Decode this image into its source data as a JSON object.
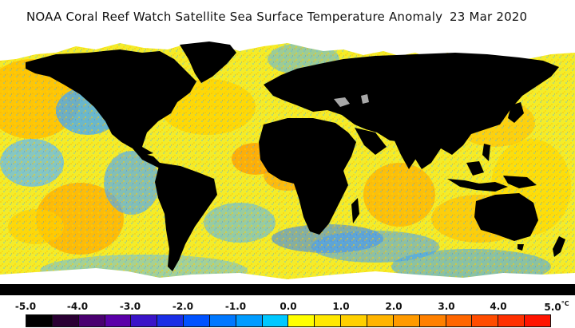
{
  "title": {
    "main": "NOAA Coral Reef Watch Satellite Sea Surface Temperature Anomaly",
    "date": "23 Mar 2020"
  },
  "map": {
    "projection": "equirectangular",
    "variable": "sea surface temperature anomaly",
    "land_color": "#000000",
    "sea_ice_color": "#ffffff",
    "lake_color": "#a8a8a8"
  },
  "colorbar": {
    "ticks": [
      "-5.0",
      "-4.0",
      "-3.0",
      "-2.0",
      "-1.0",
      "0.0",
      "1.0",
      "2.0",
      "3.0",
      "4.0",
      "5.0"
    ],
    "unit": "°C",
    "colors": [
      "#000000",
      "#2a0033",
      "#4a0070",
      "#5a00a8",
      "#3a14c8",
      "#1a2ee6",
      "#0052ff",
      "#0078ff",
      "#009cff",
      "#00c8ff",
      "#ffff00",
      "#ffe800",
      "#ffd000",
      "#ffb400",
      "#ff9a00",
      "#ff8000",
      "#ff6600",
      "#ff4c00",
      "#ff3000",
      "#ff1400"
    ]
  }
}
